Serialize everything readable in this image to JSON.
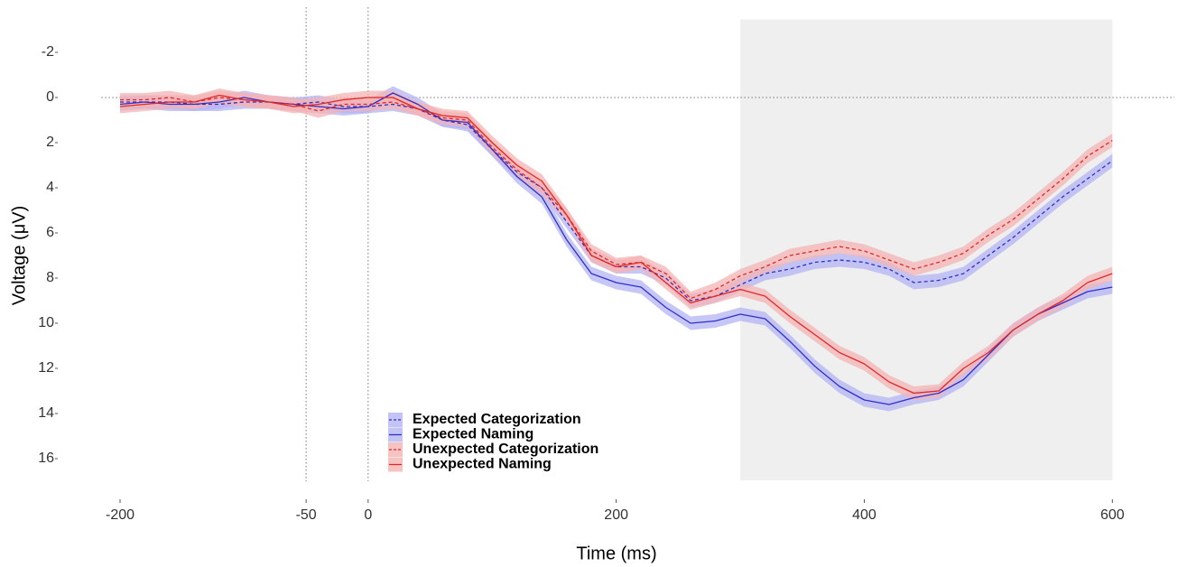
{
  "chart_data": {
    "type": "line",
    "x_label": "Time (ms)",
    "y_label": "Voltage (μV)",
    "x": [
      -200,
      -180,
      -160,
      -140,
      -120,
      -100,
      -80,
      -60,
      -40,
      -20,
      0,
      20,
      40,
      60,
      80,
      100,
      120,
      140,
      160,
      180,
      200,
      220,
      240,
      260,
      280,
      300,
      320,
      340,
      360,
      380,
      400,
      420,
      440,
      460,
      480,
      500,
      520,
      540,
      560,
      580,
      600
    ],
    "series": [
      {
        "name": "Expected Categorization",
        "color": "#3030c8",
        "band_color": "#b4b4f4",
        "dashed": true,
        "error": 0.3,
        "values": [
          0.2,
          0.2,
          0.2,
          0.3,
          0.3,
          0.2,
          0.2,
          0.3,
          0.2,
          0.4,
          0.4,
          0.3,
          0.5,
          1.0,
          1.2,
          2.3,
          3.3,
          4.0,
          5.5,
          7.0,
          7.5,
          7.5,
          8.0,
          9.0,
          8.8,
          8.3,
          7.8,
          7.6,
          7.3,
          7.2,
          7.3,
          7.6,
          8.2,
          8.1,
          7.8,
          7.0,
          6.2,
          5.3,
          4.4,
          3.6,
          2.8
        ]
      },
      {
        "name": "Expected Naming",
        "color": "#3030c8",
        "band_color": "#b4b4f4",
        "dashed": false,
        "error": 0.3,
        "values": [
          0.3,
          0.2,
          0.3,
          0.3,
          0.2,
          0.0,
          0.2,
          0.3,
          0.4,
          0.5,
          0.4,
          -0.2,
          0.3,
          1.0,
          1.1,
          2.3,
          3.5,
          4.4,
          6.3,
          7.8,
          8.2,
          8.4,
          9.3,
          10.0,
          9.9,
          9.6,
          9.8,
          10.8,
          11.9,
          12.8,
          13.4,
          13.6,
          13.3,
          13.1,
          12.5,
          11.4,
          10.3,
          9.6,
          9.1,
          8.6,
          8.4
        ]
      },
      {
        "name": "Unexpected Categorization",
        "color": "#e02828",
        "band_color": "#f4b4b4",
        "dashed": true,
        "error": 0.3,
        "values": [
          0.1,
          0.1,
          0.0,
          0.2,
          0.0,
          0.1,
          0.2,
          0.3,
          0.6,
          0.3,
          0.3,
          0.2,
          0.5,
          0.9,
          1.0,
          2.2,
          3.2,
          4.0,
          5.2,
          6.8,
          7.4,
          7.3,
          7.8,
          8.9,
          8.5,
          7.9,
          7.5,
          7.0,
          6.8,
          6.6,
          6.8,
          7.2,
          7.6,
          7.3,
          6.9,
          6.1,
          5.4,
          4.5,
          3.6,
          2.6,
          1.9
        ]
      },
      {
        "name": "Unexpected Naming",
        "color": "#e02828",
        "band_color": "#f4b4b4",
        "dashed": false,
        "error": 0.3,
        "values": [
          0.4,
          0.3,
          0.2,
          0.2,
          -0.1,
          0.1,
          0.2,
          0.4,
          0.3,
          0.1,
          0.0,
          0.0,
          0.5,
          0.8,
          0.9,
          2.0,
          3.0,
          3.7,
          5.2,
          7.0,
          7.5,
          7.3,
          8.2,
          9.1,
          8.8,
          8.5,
          8.8,
          9.7,
          10.5,
          11.3,
          11.8,
          12.6,
          13.1,
          13.0,
          12.0,
          11.3,
          10.3,
          9.6,
          9.0,
          8.2,
          7.8
        ]
      }
    ],
    "xlim": [
      -215,
      650
    ],
    "ylim": [
      -3.5,
      17
    ],
    "y_reversed": true,
    "xticks": [
      -200,
      -50,
      0,
      200,
      400,
      600
    ],
    "yticks": [
      -2,
      0,
      2,
      4,
      6,
      8,
      10,
      12,
      14,
      16
    ],
    "highlight": [
      300,
      600
    ],
    "vlines": [
      -50,
      0
    ],
    "hlines": [
      0
    ],
    "grid": false,
    "legend": "bottom-left"
  }
}
